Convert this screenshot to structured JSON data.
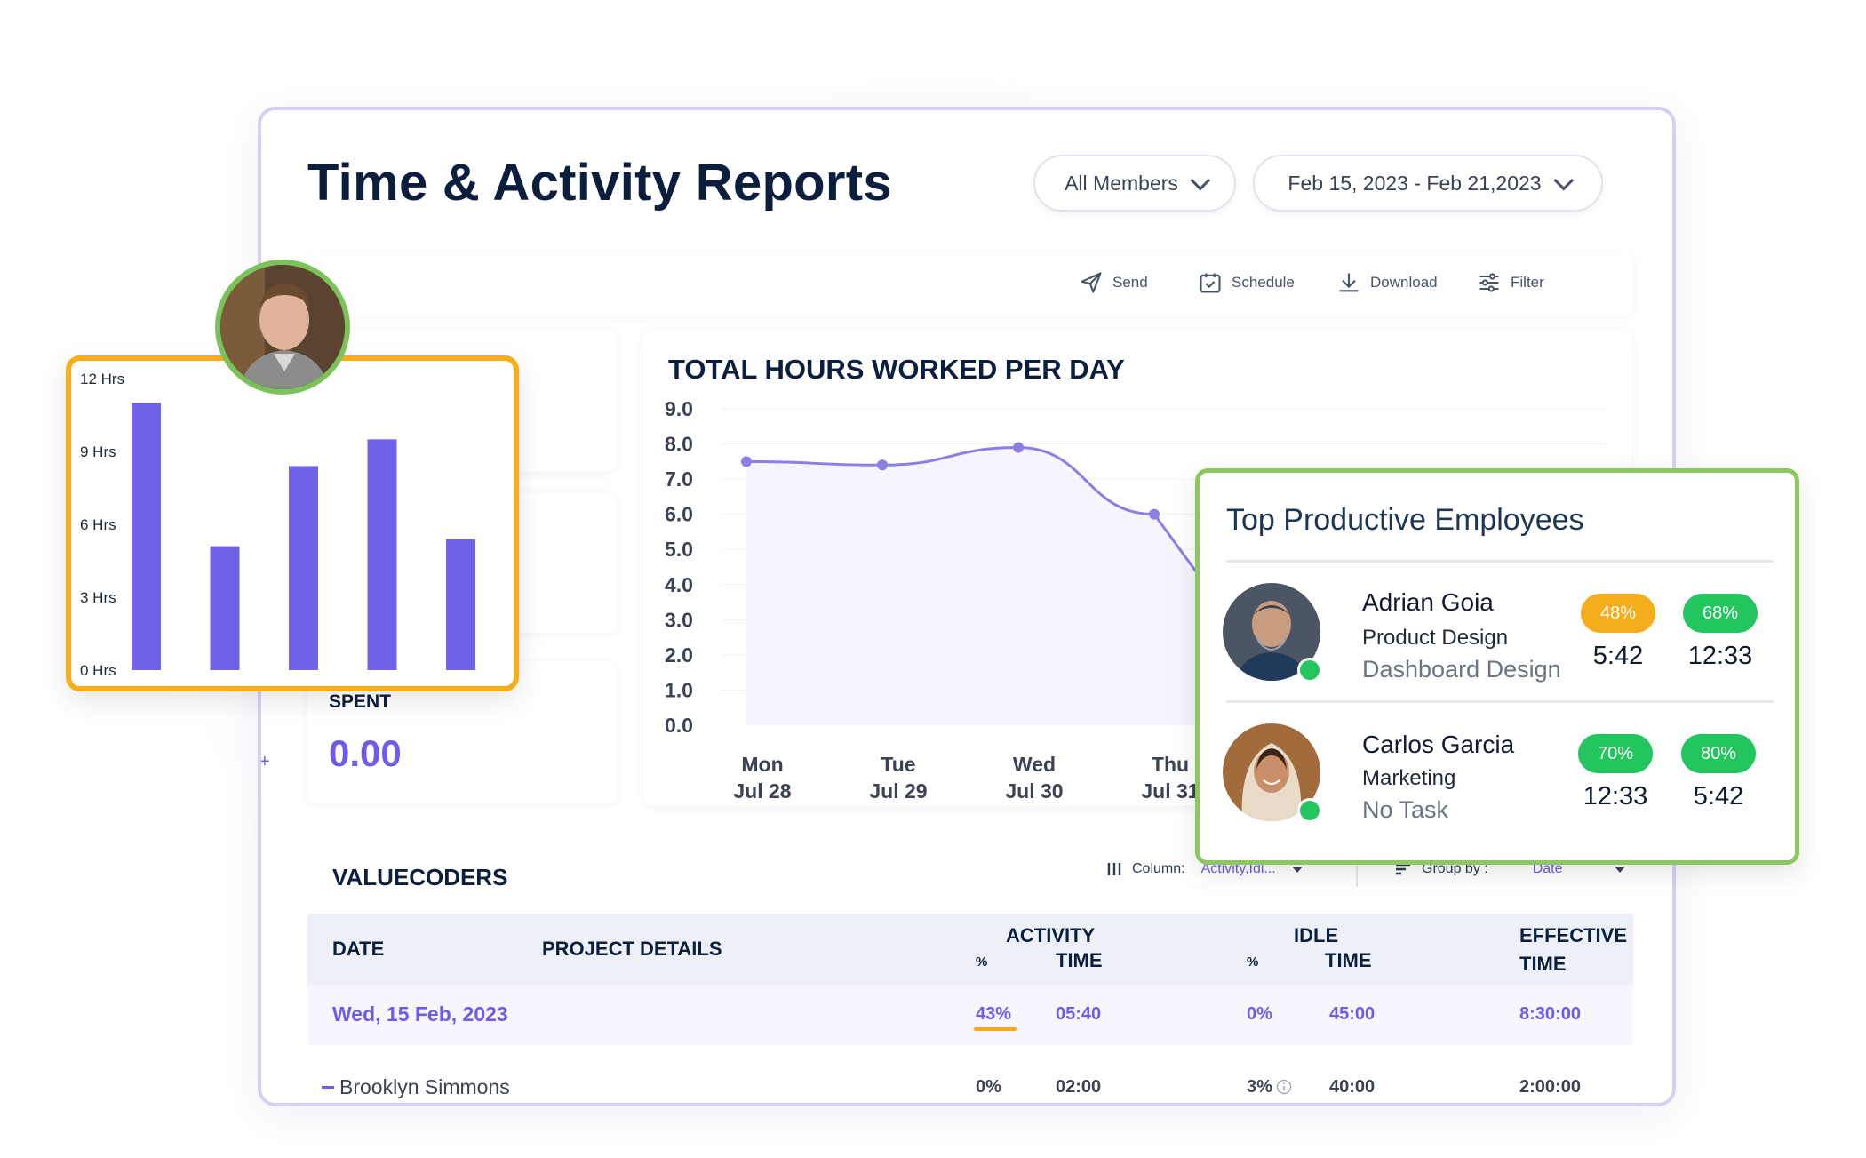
{
  "page": {
    "title": "Time & Activity Reports",
    "members_filter": "All Members",
    "date_range": "Feb 15, 2023 - Feb 21,2023"
  },
  "toolbar": {
    "send": "Send",
    "schedule": "Schedule",
    "download": "Download",
    "filter": "Filter"
  },
  "spent": {
    "label": "SPENT",
    "value": "0.00"
  },
  "bar_chart": {
    "y_ticks": [
      "12 Hrs",
      "9 Hrs",
      "6 Hrs",
      "3 Hrs",
      "0 Hrs"
    ]
  },
  "chart_data": [
    {
      "type": "bar",
      "title": "",
      "categories": [
        "",
        "",
        "",
        "",
        ""
      ],
      "values": [
        11.0,
        5.1,
        8.4,
        9.5,
        5.4
      ],
      "ylim": [
        0,
        12
      ],
      "yticks": [
        "12 Hrs",
        "9 Hrs",
        "6 Hrs",
        "3 Hrs",
        "0 Hrs"
      ],
      "color": "#7163e8"
    },
    {
      "type": "line",
      "title": "TOTAL HOURS WORKED PER DAY",
      "yticks": [
        "9.0",
        "8.0",
        "7.0",
        "6.0",
        "5.0",
        "4.0",
        "3.0",
        "2.0",
        "1.0",
        "0.0"
      ],
      "ylim": [
        0,
        9
      ],
      "x_ticks": [
        {
          "day": "Mon",
          "date": "Jul 28"
        },
        {
          "day": "Tue",
          "date": "Jul 29"
        },
        {
          "day": "Wed",
          "date": "Jul 30"
        },
        {
          "day": "Thu",
          "date": "Jul 31"
        }
      ],
      "x": [
        0,
        1,
        2,
        3
      ],
      "values": [
        7.5,
        7.4,
        7.9,
        6.0
      ],
      "color": "#8b7fe6"
    }
  ],
  "table": {
    "title": "VALUECODERS",
    "column_label": "Column:",
    "column_value": "Activity,Idl...",
    "group_label": "Group by :",
    "group_value": "Date",
    "headers": {
      "date": "DATE",
      "project": "PROJECT DETAILS",
      "activity": "ACTIVITY",
      "activity_time": "TIME",
      "activity_pct": "%",
      "idle": "IDLE",
      "idle_time": "TIME",
      "idle_pct": "%",
      "effective": "EFFECTIVE",
      "effective_time": "TIME"
    },
    "rows": [
      {
        "date": "Wed, 15 Feb, 2023",
        "activity_pct": "43%",
        "activity_time": "05:40",
        "idle_pct": "0%",
        "idle_time": "45:00",
        "effective": "8:30:00"
      },
      {
        "name": "Brooklyn Simmons",
        "activity_pct": "0%",
        "activity_time": "02:00",
        "idle_pct": "3%",
        "idle_time": "40:00",
        "effective": "2:00:00"
      }
    ]
  },
  "top_employees": {
    "title": "Top Productive Employees",
    "items": [
      {
        "name": "Adrian Goia",
        "dept": "Product Design",
        "task": "Dashboard Design",
        "badge1": "48%",
        "stat1": "5:42",
        "badge2": "68%",
        "stat2": "12:33",
        "badge1_color": "#f5ad1c",
        "badge2_color": "#22c55e"
      },
      {
        "name": "Carlos Garcia",
        "dept": "Marketing",
        "task": "No Task",
        "badge1": "70%",
        "stat1": "12:33",
        "badge2": "80%",
        "stat2": "5:42",
        "badge1_color": "#22c55e",
        "badge2_color": "#22c55e"
      }
    ]
  },
  "colors": {
    "accent": "#6c5ce7",
    "orange": "#f5ad1c",
    "green": "#22c55e",
    "navy": "#0b1e3d"
  }
}
